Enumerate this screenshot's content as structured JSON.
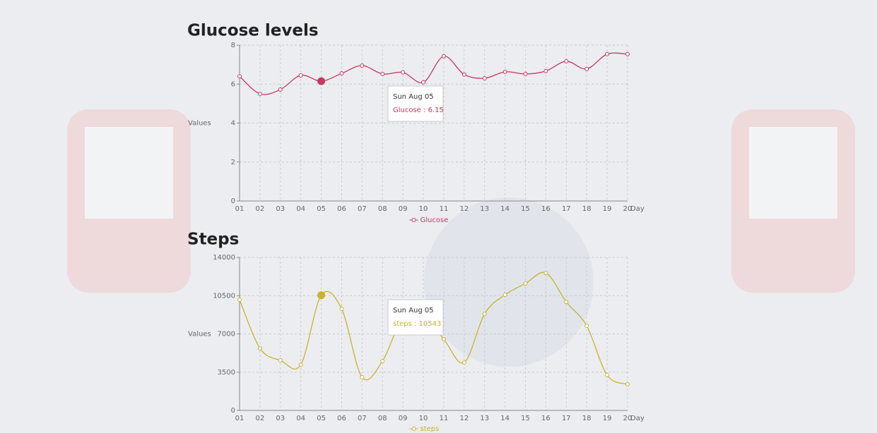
{
  "chart_data": [
    {
      "type": "line",
      "title": "Glucose levels",
      "x_label": "Day",
      "y_label": "Values",
      "categories": [
        "01",
        "02",
        "03",
        "04",
        "05",
        "06",
        "07",
        "08",
        "09",
        "10",
        "11",
        "12",
        "13",
        "14",
        "15",
        "16",
        "17",
        "18",
        "19",
        "20"
      ],
      "series": [
        {
          "name": "Glucose",
          "color": "#c9375f",
          "values": [
            6.4,
            5.5,
            5.72,
            6.45,
            6.15,
            6.55,
            6.95,
            6.52,
            6.6,
            6.09,
            7.43,
            6.49,
            6.3,
            6.63,
            6.52,
            6.67,
            7.17,
            6.78,
            7.54,
            7.54
          ]
        }
      ],
      "ylim": [
        0,
        8
      ],
      "yticks": [
        0,
        2,
        4,
        6,
        8
      ],
      "grid": true,
      "tooltip": {
        "date": "Sun Aug 05",
        "text": "Glucose : 6.15"
      }
    },
    {
      "type": "line",
      "title": "Steps",
      "x_label": "Day",
      "y_label": "Values",
      "categories": [
        "01",
        "02",
        "03",
        "04",
        "05",
        "06",
        "07",
        "08",
        "09",
        "10",
        "11",
        "12",
        "13",
        "14",
        "15",
        "16",
        "17",
        "18",
        "19",
        "20"
      ],
      "series": [
        {
          "name": "steps",
          "color": "#c9b32a",
          "values": [
            10130,
            5680,
            4580,
            4190,
            10543,
            9290,
            3030,
            4520,
            8500,
            8800,
            6520,
            4380,
            8840,
            10580,
            11610,
            12580,
            9930,
            7740,
            3230,
            2390
          ]
        }
      ],
      "ylim": [
        0,
        14000
      ],
      "yticks": [
        0,
        3500,
        7000,
        10500,
        14000
      ],
      "grid": true,
      "tooltip": {
        "date": "Sun Aug 05",
        "text": "steps : 10543"
      }
    }
  ]
}
